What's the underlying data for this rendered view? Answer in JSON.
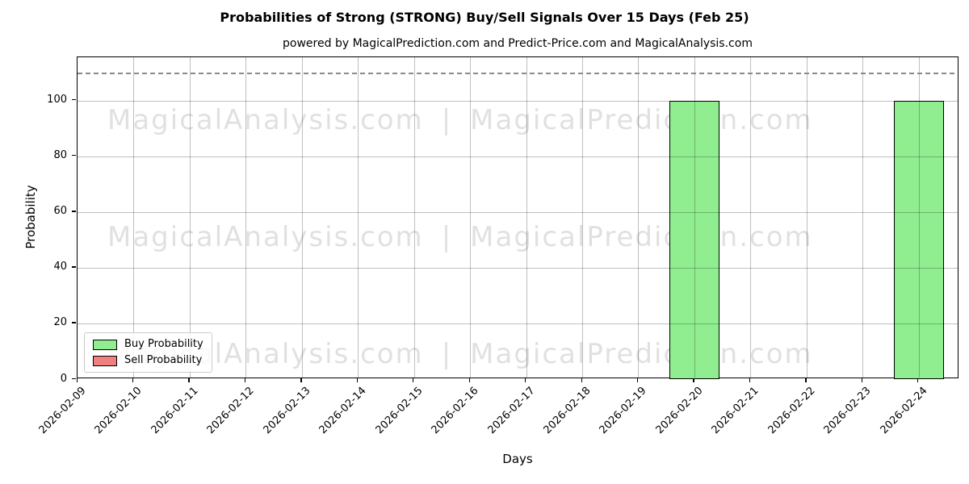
{
  "chart_data": {
    "type": "bar",
    "title": "Probabilities of Strong (STRONG) Buy/Sell Signals Over 15 Days (Feb 25)",
    "subtitle": "powered by MagicalPrediction.com and Predict-Price.com and MagicalAnalysis.com",
    "xlabel": "Days",
    "ylabel": "Probability",
    "categories": [
      "2026-02-09",
      "2026-02-10",
      "2026-02-11",
      "2026-02-12",
      "2026-02-13",
      "2026-02-14",
      "2026-02-15",
      "2026-02-16",
      "2026-02-17",
      "2026-02-18",
      "2026-02-19",
      "2026-02-20",
      "2026-02-21",
      "2026-02-22",
      "2026-02-23",
      "2026-02-24"
    ],
    "series": [
      {
        "name": "Buy Probability",
        "color": "#90ee90",
        "edge_color": "#000000",
        "values": [
          0,
          0,
          0,
          0,
          0,
          0,
          0,
          0,
          0,
          0,
          0,
          100,
          0,
          0,
          0,
          100
        ]
      },
      {
        "name": "Sell Probability",
        "color": "#f08080",
        "edge_color": "#000000",
        "values": [
          0,
          0,
          0,
          0,
          0,
          0,
          0,
          0,
          0,
          0,
          0,
          0,
          0,
          0,
          0,
          0
        ]
      }
    ],
    "yticks": [
      0,
      20,
      40,
      60,
      80,
      100
    ],
    "ylim": [
      0,
      115.5
    ],
    "dashed_line_y": 110,
    "grid": true,
    "legend_position": "lower left",
    "watermark": {
      "left": "MagicalAnalysis.com",
      "separator": "|",
      "right": "MagicalPrediction.com",
      "rows": 3
    }
  }
}
